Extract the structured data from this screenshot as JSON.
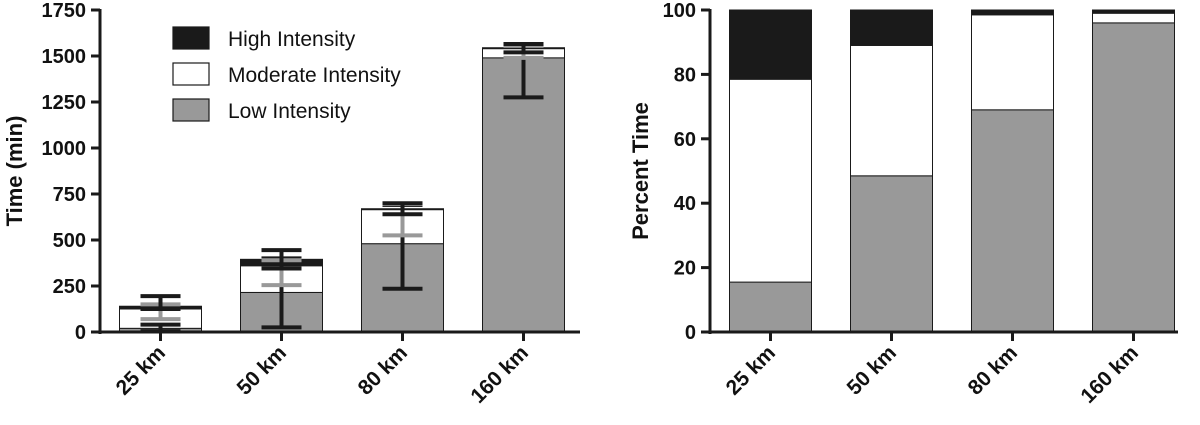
{
  "chart_data": [
    {
      "type": "bar",
      "stacked": true,
      "categories": [
        "25 km",
        "50 km",
        "80 km",
        "160 km"
      ],
      "ylabel": "Time (min)",
      "ylim": [
        0,
        1750
      ],
      "yticks": [
        0,
        250,
        500,
        750,
        1000,
        1250,
        1500,
        1750
      ],
      "grid": false,
      "legend_position": "top-left",
      "series": [
        {
          "name": "Low Intensity",
          "color": "#999999",
          "values": [
            20,
            215,
            480,
            1490
          ]
        },
        {
          "name": "Moderate Intensity",
          "color": "#ffffff",
          "values": [
            105,
            145,
            185,
            50
          ]
        },
        {
          "name": "High Intensity",
          "color": "#1a1a1a",
          "values": [
            15,
            35,
            5,
            5
          ]
        }
      ],
      "error_bars": [
        {
          "series": "Low Intensity",
          "color": "#1a1a1a",
          "low": [
            5,
            25,
            235,
            1275
          ],
          "high": [
            40,
            400,
            690,
            1560
          ]
        },
        {
          "series": "Moderate Intensity",
          "color": "#999999",
          "low": [
            70,
            255,
            525,
            1490
          ],
          "high": [
            150,
            390,
            695,
            1555
          ]
        },
        {
          "series": "High Intensity",
          "color": "#1a1a1a",
          "low": [
            125,
            345,
            640,
            1520
          ],
          "high": [
            195,
            445,
            700,
            1565
          ]
        }
      ]
    },
    {
      "type": "bar",
      "stacked": true,
      "categories": [
        "25 km",
        "50 km",
        "80 km",
        "160 km"
      ],
      "ylabel": "Percent Time",
      "ylim": [
        0,
        100
      ],
      "yticks": [
        0,
        20,
        40,
        60,
        80,
        100
      ],
      "grid": false,
      "series": [
        {
          "name": "Low Intensity",
          "color": "#999999",
          "values": [
            15.5,
            48.5,
            69,
            96
          ]
        },
        {
          "name": "Moderate Intensity",
          "color": "#ffffff",
          "values": [
            63,
            40.5,
            29.5,
            3
          ]
        },
        {
          "name": "High Intensity",
          "color": "#1a1a1a",
          "values": [
            21.5,
            11,
            1.5,
            1
          ]
        }
      ]
    }
  ]
}
